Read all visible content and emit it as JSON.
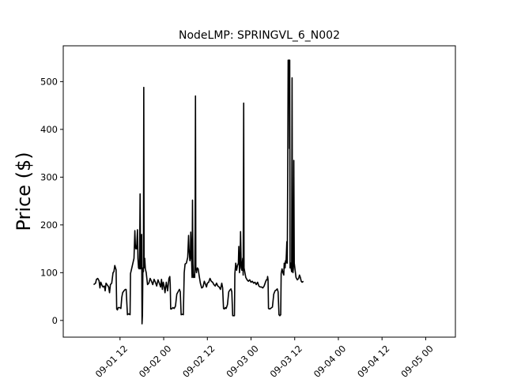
{
  "chart_data": {
    "type": "line",
    "title": "NodeLMP: SPRINGVL_6_N002",
    "xlabel": "",
    "ylabel": "Price ($)",
    "xlim": [
      -0.15,
      4.34
    ],
    "ylim": [
      -35,
      575
    ],
    "x_unit": "days from 2016-09-01 00:00",
    "xtick_values": [
      0.5,
      1.0,
      1.5,
      2.0,
      2.5,
      3.0,
      3.5,
      4.0
    ],
    "xtick_labels": [
      "09-01 12",
      "09-02 00",
      "09-02 12",
      "09-03 00",
      "09-03 12",
      "09-04 00",
      "09-04 12",
      "09-05 00"
    ],
    "yticks": [
      0,
      100,
      200,
      300,
      400,
      500
    ],
    "grid": false,
    "line_color": "#000000",
    "series": [
      {
        "name": "",
        "points": [
          [
            0.198,
            75
          ],
          [
            0.22,
            78
          ],
          [
            0.23,
            86
          ],
          [
            0.245,
            88
          ],
          [
            0.26,
            83
          ],
          [
            0.27,
            68
          ],
          [
            0.28,
            80
          ],
          [
            0.29,
            75
          ],
          [
            0.305,
            70
          ],
          [
            0.32,
            72
          ],
          [
            0.33,
            62
          ],
          [
            0.34,
            78
          ],
          [
            0.355,
            74
          ],
          [
            0.37,
            70
          ],
          [
            0.38,
            58
          ],
          [
            0.39,
            75
          ],
          [
            0.405,
            78
          ],
          [
            0.42,
            100
          ],
          [
            0.43,
            102
          ],
          [
            0.44,
            115
          ],
          [
            0.455,
            106
          ],
          [
            0.462,
            24
          ],
          [
            0.47,
            22
          ],
          [
            0.48,
            27
          ],
          [
            0.495,
            27
          ],
          [
            0.51,
            25
          ],
          [
            0.52,
            48
          ],
          [
            0.53,
            58
          ],
          [
            0.545,
            62
          ],
          [
            0.56,
            65
          ],
          [
            0.57,
            65
          ],
          [
            0.585,
            12
          ],
          [
            0.6,
            14
          ],
          [
            0.615,
            12
          ],
          [
            0.62,
            98
          ],
          [
            0.635,
            110
          ],
          [
            0.645,
            118
          ],
          [
            0.66,
            130
          ],
          [
            0.67,
            188
          ],
          [
            0.675,
            160
          ],
          [
            0.68,
            150
          ],
          [
            0.69,
            150
          ],
          [
            0.7,
            190
          ],
          [
            0.705,
            130
          ],
          [
            0.712,
            110
          ],
          [
            0.72,
            108
          ],
          [
            0.725,
            150
          ],
          [
            0.73,
            265
          ],
          [
            0.735,
            108
          ],
          [
            0.742,
            150
          ],
          [
            0.748,
            180
          ],
          [
            0.752,
            -7
          ],
          [
            0.757,
            12
          ],
          [
            0.762,
            110
          ],
          [
            0.768,
            102
          ],
          [
            0.772,
            488
          ],
          [
            0.776,
            110
          ],
          [
            0.783,
            130
          ],
          [
            0.79,
            108
          ],
          [
            0.8,
            100
          ],
          [
            0.815,
            75
          ],
          [
            0.83,
            78
          ],
          [
            0.845,
            88
          ],
          [
            0.86,
            82
          ],
          [
            0.875,
            75
          ],
          [
            0.89,
            86
          ],
          [
            0.905,
            80
          ],
          [
            0.92,
            72
          ],
          [
            0.935,
            85
          ],
          [
            0.95,
            78
          ],
          [
            0.965,
            70
          ],
          [
            0.975,
            86
          ],
          [
            0.985,
            65
          ],
          [
            0.995,
            80
          ],
          [
            1.005,
            72
          ],
          [
            1.015,
            58
          ],
          [
            1.03,
            80
          ],
          [
            1.045,
            62
          ],
          [
            1.06,
            88
          ],
          [
            1.07,
            92
          ],
          [
            1.075,
            75
          ],
          [
            1.08,
            24
          ],
          [
            1.09,
            24
          ],
          [
            1.105,
            27
          ],
          [
            1.12,
            25
          ],
          [
            1.135,
            30
          ],
          [
            1.15,
            55
          ],
          [
            1.165,
            60
          ],
          [
            1.18,
            65
          ],
          [
            1.19,
            60
          ],
          [
            1.2,
            12
          ],
          [
            1.215,
            13
          ],
          [
            1.225,
            12
          ],
          [
            1.235,
            100
          ],
          [
            1.245,
            118
          ],
          [
            1.26,
            120
          ],
          [
            1.275,
            132
          ],
          [
            1.285,
            178
          ],
          [
            1.29,
            150
          ],
          [
            1.3,
            125
          ],
          [
            1.305,
            130
          ],
          [
            1.31,
            185
          ],
          [
            1.318,
            140
          ],
          [
            1.325,
            90
          ],
          [
            1.33,
            252
          ],
          [
            1.335,
            120
          ],
          [
            1.34,
            90
          ],
          [
            1.348,
            95
          ],
          [
            1.355,
            90
          ],
          [
            1.36,
            195
          ],
          [
            1.364,
            470
          ],
          [
            1.368,
            110
          ],
          [
            1.375,
            100
          ],
          [
            1.385,
            110
          ],
          [
            1.395,
            108
          ],
          [
            1.405,
            95
          ],
          [
            1.42,
            78
          ],
          [
            1.435,
            68
          ],
          [
            1.45,
            70
          ],
          [
            1.465,
            82
          ],
          [
            1.48,
            75
          ],
          [
            1.49,
            70
          ],
          [
            1.5,
            78
          ],
          [
            1.515,
            80
          ],
          [
            1.53,
            88
          ],
          [
            1.545,
            82
          ],
          [
            1.56,
            80
          ],
          [
            1.575,
            75
          ],
          [
            1.59,
            72
          ],
          [
            1.605,
            78
          ],
          [
            1.62,
            72
          ],
          [
            1.635,
            70
          ],
          [
            1.65,
            65
          ],
          [
            1.665,
            78
          ],
          [
            1.675,
            68
          ],
          [
            1.685,
            25
          ],
          [
            1.695,
            24
          ],
          [
            1.705,
            27
          ],
          [
            1.715,
            25
          ],
          [
            1.73,
            33
          ],
          [
            1.745,
            60
          ],
          [
            1.76,
            64
          ],
          [
            1.77,
            66
          ],
          [
            1.78,
            60
          ],
          [
            1.79,
            10
          ],
          [
            1.8,
            10
          ],
          [
            1.81,
            10
          ],
          [
            1.815,
            98
          ],
          [
            1.825,
            120
          ],
          [
            1.835,
            105
          ],
          [
            1.845,
            115
          ],
          [
            1.855,
            120
          ],
          [
            1.86,
            155
          ],
          [
            1.868,
            100
          ],
          [
            1.875,
            120
          ],
          [
            1.88,
            186
          ],
          [
            1.888,
            110
          ],
          [
            1.895,
            105
          ],
          [
            1.9,
            120
          ],
          [
            1.905,
            130
          ],
          [
            1.91,
            95
          ],
          [
            1.916,
            455
          ],
          [
            1.92,
            110
          ],
          [
            1.93,
            100
          ],
          [
            1.94,
            90
          ],
          [
            1.955,
            85
          ],
          [
            1.97,
            82
          ],
          [
            1.985,
            85
          ],
          [
            2.0,
            80
          ],
          [
            2.015,
            82
          ],
          [
            2.03,
            78
          ],
          [
            2.045,
            80
          ],
          [
            2.06,
            75
          ],
          [
            2.075,
            80
          ],
          [
            2.09,
            72
          ],
          [
            2.105,
            70
          ],
          [
            2.12,
            70
          ],
          [
            2.135,
            68
          ],
          [
            2.15,
            72
          ],
          [
            2.165,
            80
          ],
          [
            2.175,
            85
          ],
          [
            2.185,
            85
          ],
          [
            2.19,
            92
          ],
          [
            2.195,
            85
          ],
          [
            2.2,
            25
          ],
          [
            2.215,
            24
          ],
          [
            2.23,
            26
          ],
          [
            2.245,
            28
          ],
          [
            2.26,
            55
          ],
          [
            2.275,
            62
          ],
          [
            2.29,
            64
          ],
          [
            2.3,
            66
          ],
          [
            2.31,
            60
          ],
          [
            2.32,
            12
          ],
          [
            2.33,
            10
          ],
          [
            2.34,
            12
          ],
          [
            2.345,
            98
          ],
          [
            2.355,
            108
          ],
          [
            2.365,
            100
          ],
          [
            2.375,
            95
          ],
          [
            2.38,
            120
          ],
          [
            2.39,
            110
          ],
          [
            2.395,
            125
          ],
          [
            2.4,
            120
          ],
          [
            2.405,
            140
          ],
          [
            2.41,
            165
          ],
          [
            2.415,
            120
          ],
          [
            2.42,
            310
          ],
          [
            2.425,
            545
          ],
          [
            2.428,
            480
          ],
          [
            2.432,
            540
          ],
          [
            2.436,
            545
          ],
          [
            2.44,
            360
          ],
          [
            2.443,
            545
          ],
          [
            2.447,
            110
          ],
          [
            2.455,
            120
          ],
          [
            2.46,
            108
          ],
          [
            2.465,
            102
          ],
          [
            2.47,
            508
          ],
          [
            2.475,
            110
          ],
          [
            2.48,
            100
          ],
          [
            2.485,
            110
          ],
          [
            2.49,
            335
          ],
          [
            2.495,
            120
          ],
          [
            2.505,
            105
          ],
          [
            2.515,
            90
          ],
          [
            2.53,
            85
          ],
          [
            2.545,
            88
          ],
          [
            2.555,
            95
          ],
          [
            2.565,
            90
          ],
          [
            2.575,
            82
          ],
          [
            2.585,
            80
          ],
          [
            2.6,
            82
          ]
        ]
      }
    ]
  }
}
